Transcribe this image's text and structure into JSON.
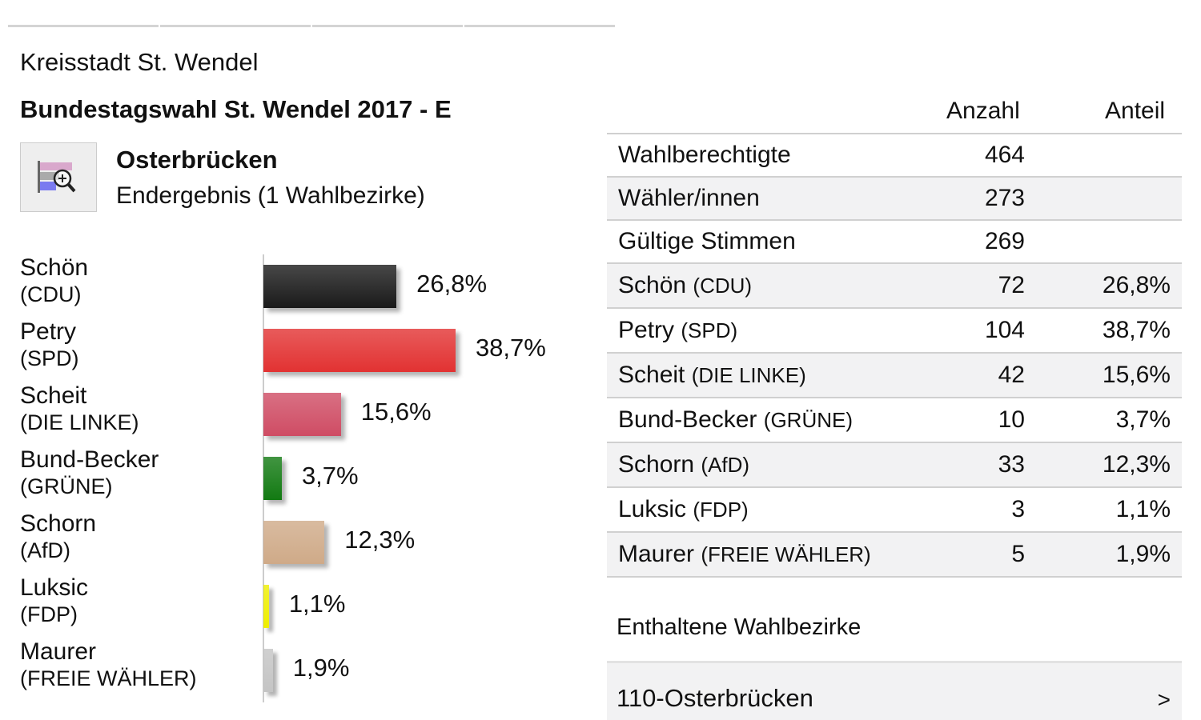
{
  "header": {
    "city": "Kreisstadt St. Wendel",
    "title": "Bundestagswahl St. Wendel 2017 - E",
    "place": "Osterbrücken",
    "subtitle": "Endergebnis (1 Wahlbezirke)",
    "icon": "chart-zoom-icon"
  },
  "chart_data": {
    "type": "bar",
    "orientation": "horizontal",
    "unit": "%",
    "categories": [
      "Schön (CDU)",
      "Petry (SPD)",
      "Scheit (DIE LINKE)",
      "Bund-Becker (GRÜNE)",
      "Schorn (AfD)",
      "Luksic (FDP)",
      "Maurer (FREIE WÄHLER)"
    ],
    "candidates": [
      {
        "name": "Schön",
        "party": "(CDU)",
        "value": 26.8,
        "label": "26,8%",
        "color": "#1a1a1a"
      },
      {
        "name": "Petry",
        "party": "(SPD)",
        "value": 38.7,
        "label": "38,7%",
        "color": "#e23232"
      },
      {
        "name": "Scheit",
        "party": "(DIE LINKE)",
        "value": 15.6,
        "label": "15,6%",
        "color": "#cf4c64"
      },
      {
        "name": "Bund-Becker",
        "party": "(GRÜNE)",
        "value": 3.7,
        "label": "3,7%",
        "color": "#127a12"
      },
      {
        "name": "Schorn",
        "party": "(AfD)",
        "value": 12.3,
        "label": "12,3%",
        "color": "#cfaa88"
      },
      {
        "name": "Luksic",
        "party": "(FDP)",
        "value": 1.1,
        "label": "1,1%",
        "color": "#eeee00"
      },
      {
        "name": "Maurer",
        "party": "(FREIE WÄHLER)",
        "value": 1.9,
        "label": "1,9%",
        "color": "#c4c4c4"
      }
    ]
  },
  "table": {
    "headers": {
      "count": "Anzahl",
      "share": "Anteil"
    },
    "rows": [
      {
        "name": "Wahlberechtigte",
        "party": "",
        "count": "464",
        "share": ""
      },
      {
        "name": "Wähler/innen",
        "party": "",
        "count": "273",
        "share": ""
      },
      {
        "name": "Gültige Stimmen",
        "party": "",
        "count": "269",
        "share": ""
      },
      {
        "name": "Schön",
        "party": "(CDU)",
        "count": "72",
        "share": "26,8%"
      },
      {
        "name": "Petry",
        "party": "(SPD)",
        "count": "104",
        "share": "38,7%"
      },
      {
        "name": "Scheit",
        "party": "(DIE LINKE)",
        "count": "42",
        "share": "15,6%"
      },
      {
        "name": "Bund-Becker",
        "party": "(GRÜNE)",
        "count": "10",
        "share": "3,7%"
      },
      {
        "name": "Schorn",
        "party": "(AfD)",
        "count": "33",
        "share": "12,3%"
      },
      {
        "name": "Luksic",
        "party": "(FDP)",
        "count": "3",
        "share": "1,1%"
      },
      {
        "name": "Maurer",
        "party": "(FREIE WÄHLER)",
        "count": "5",
        "share": "1,9%"
      }
    ]
  },
  "districts": {
    "title": "Enthaltene Wahlbezirke",
    "items": [
      {
        "label": "110-Osterbrücken",
        "chevron": ">"
      }
    ]
  }
}
